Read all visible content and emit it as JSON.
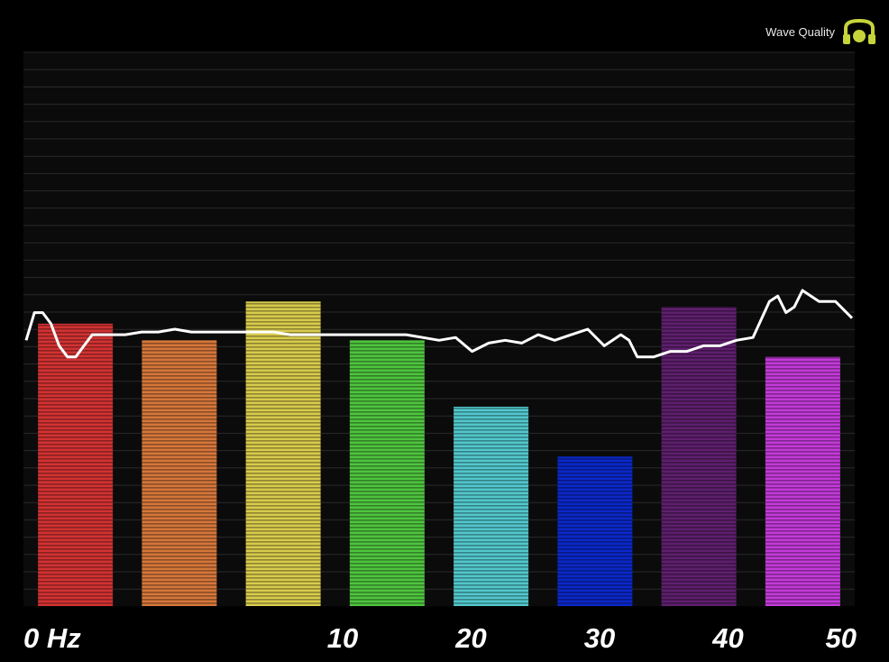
{
  "indicator": {
    "label": "Wave Quality",
    "icon": "headset-quality-icon",
    "color": "#c6d43a"
  },
  "chart_data": {
    "type": "bar",
    "xlabel": "",
    "ylabel": "",
    "ylim": [
      0,
      100
    ],
    "grid": true,
    "x_ticks": [
      {
        "label": "0 Hz",
        "value": 0
      },
      {
        "label": "10",
        "value": 10
      },
      {
        "label": "20",
        "value": 20
      },
      {
        "label": "30",
        "value": 30
      },
      {
        "label": "40",
        "value": 40
      },
      {
        "label": "50",
        "value": 50
      }
    ],
    "bars": [
      {
        "value": 51,
        "color": "#d23232"
      },
      {
        "value": 48,
        "color": "#d5763a"
      },
      {
        "value": 55,
        "color": "#d8cb4c"
      },
      {
        "value": 48,
        "color": "#4ec43e"
      },
      {
        "value": 36,
        "color": "#52c7cc"
      },
      {
        "value": 27,
        "color": "#0b28c8"
      },
      {
        "value": 54,
        "color": "#5e1f6d"
      },
      {
        "value": 45,
        "color": "#c33ad8"
      }
    ],
    "line": {
      "color": "#ffffff",
      "x": [
        0,
        0.5,
        1,
        1.5,
        2,
        2.5,
        3,
        3.5,
        4,
        5,
        6,
        7,
        8,
        9,
        10,
        11,
        12,
        13,
        14,
        15,
        16,
        17,
        18,
        19,
        20,
        21,
        22,
        23,
        24,
        25,
        26,
        27,
        28,
        29,
        30,
        31,
        32,
        33,
        34,
        35,
        36,
        36.5,
        37,
        38,
        39,
        40,
        41,
        42,
        43,
        44,
        45,
        45.5,
        46,
        46.5,
        47,
        48,
        49,
        50
      ],
      "y": [
        48,
        53,
        53,
        51,
        47,
        45,
        45,
        47,
        49,
        49,
        49,
        49.5,
        49.5,
        50,
        49.5,
        49.5,
        49.5,
        49.5,
        49.5,
        49.5,
        49,
        49,
        49,
        49,
        49,
        49,
        49,
        49,
        48.5,
        48,
        48.5,
        46,
        47.5,
        48,
        47.5,
        49,
        48,
        49,
        50,
        47,
        49,
        48,
        45,
        45,
        46,
        46,
        47,
        47,
        48,
        48.5,
        55,
        56,
        53,
        54,
        57,
        55,
        55,
        52
      ]
    }
  }
}
